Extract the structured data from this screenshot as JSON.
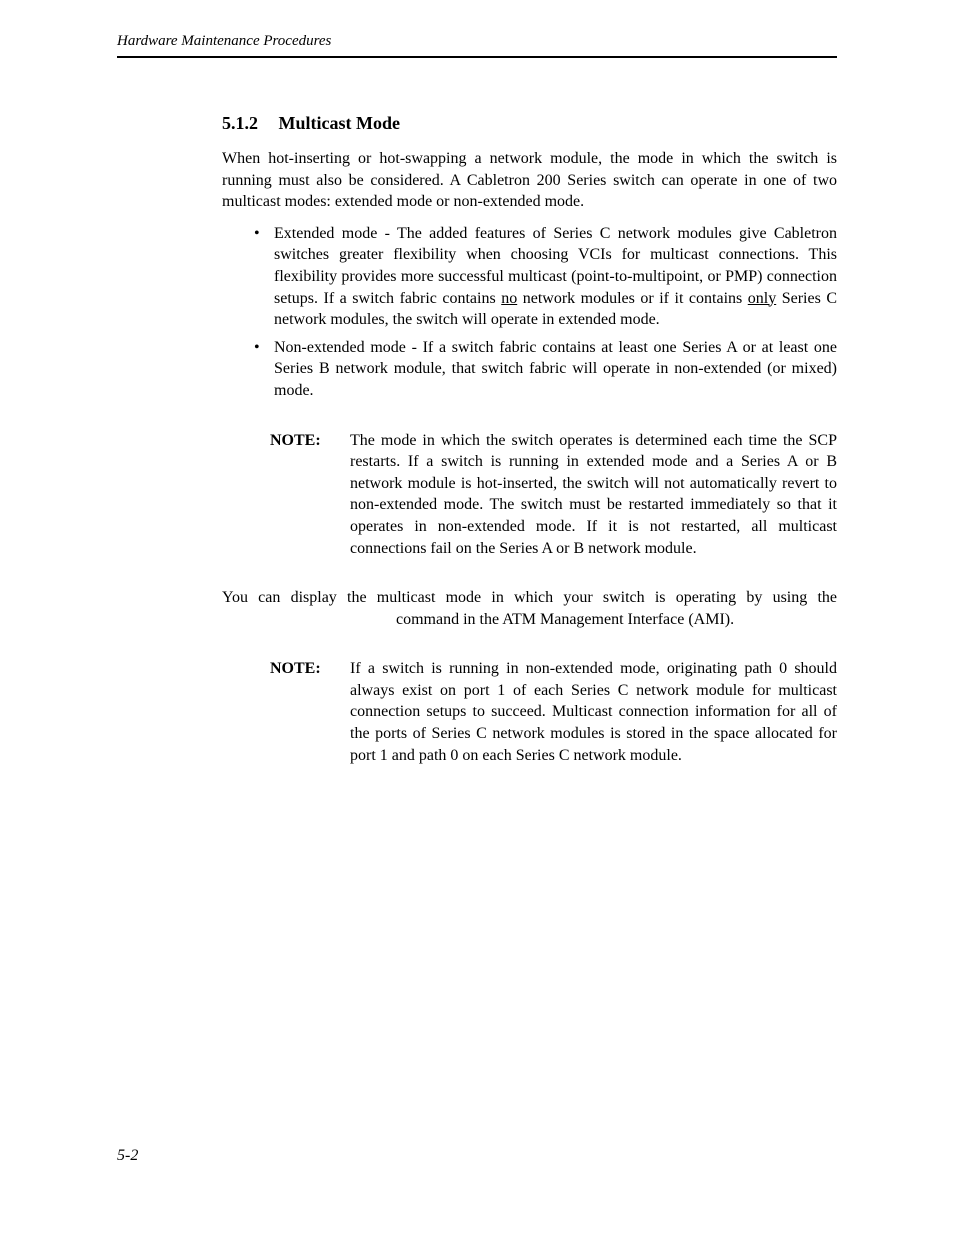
{
  "header": {
    "running_title": "Hardware Maintenance Procedures"
  },
  "section": {
    "number": "5.1.2",
    "title": "Multicast Mode",
    "intro": "When hot-inserting or hot-swapping a network module, the mode in which the switch is running must also be considered. A Cabletron 200 Series switch can operate in one of two multicast modes: extended mode or non-extended mode.",
    "bullet1_pre": "Extended mode - The added features of Series C network modules give Cabletron switches greater flexibility when choosing VCIs for multicast connections. This flexibility provides more successful multicast (point-to-multipoint, or PMP) connection setups. If a switch fabric contains ",
    "bullet1_u1": "no",
    "bullet1_mid": " network modules or if it contains ",
    "bullet1_u2": "only",
    "bullet1_post": " Series C network modules, the switch will operate in extended mode.",
    "bullet2": "Non-extended mode - If a switch fabric contains at least one Series A or at least one Series B network module, that switch fabric will operate in non-extended (or mixed) mode.",
    "note1_label": "NOTE:",
    "note1_body": "The mode in which the switch operates is determined each time the SCP restarts. If a switch is running in extended mode and a Series A or B network module is hot-inserted, the switch will not automatically revert to non-extended mode. The switch must be restarted immediately so that it operates in non-extended mode. If it is not restarted, all multicast connections fail on the Series A or B network module.",
    "para2_pre": "You can display the multicast mode in which your switch is operating by using the ",
    "para2_post": " command in the ATM Management Interface (AMI).",
    "note2_label": "NOTE:",
    "note2_body": "If a switch is running in non-extended mode, originating path 0 should always exist on port 1 of each Series C network module for multicast connection setups to succeed. Multicast connection information for all of the ports of Series C network modules is stored in the space allocated for port 1 and path 0 on each Series C network module."
  },
  "footer": {
    "page_number": "5-2"
  }
}
